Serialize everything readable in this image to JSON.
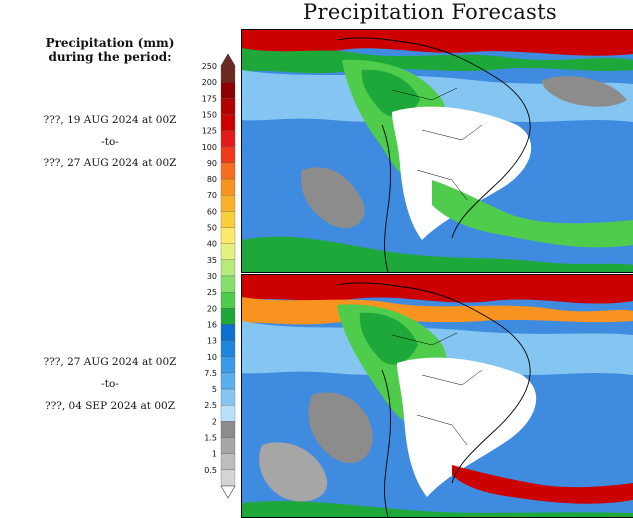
{
  "title": "Precipitation Forecasts",
  "legend": {
    "heading_line1": "Precipitation (mm)",
    "heading_line2": "during the period:",
    "levels": [
      {
        "label": "250",
        "color": "#6b2a1f"
      },
      {
        "label": "200",
        "color": "#8b0000"
      },
      {
        "label": "175",
        "color": "#b10000"
      },
      {
        "label": "150",
        "color": "#cc0000"
      },
      {
        "label": "125",
        "color": "#e31a1a"
      },
      {
        "label": "100",
        "color": "#f03a1a"
      },
      {
        "label": "90",
        "color": "#f56e1e"
      },
      {
        "label": "80",
        "color": "#f7931e"
      },
      {
        "label": "70",
        "color": "#f8b12a"
      },
      {
        "label": "60",
        "color": "#f9cf3c"
      },
      {
        "label": "50",
        "color": "#fae96a"
      },
      {
        "label": "40",
        "color": "#e3f27e"
      },
      {
        "label": "35",
        "color": "#b6ec7c"
      },
      {
        "label": "30",
        "color": "#84e06a"
      },
      {
        "label": "25",
        "color": "#4fcc4c"
      },
      {
        "label": "20",
        "color": "#1ea83a"
      },
      {
        "label": "16",
        "color": "#0e6fd1"
      },
      {
        "label": "13",
        "color": "#1f86e0"
      },
      {
        "label": "10",
        "color": "#3a9be8"
      },
      {
        "label": "7.5",
        "color": "#5aaeea"
      },
      {
        "label": "5",
        "color": "#84c6f1"
      },
      {
        "label": "2.5",
        "color": "#b8e0f6"
      },
      {
        "label": "2",
        "color": "#8c8c8c"
      },
      {
        "label": "1.5",
        "color": "#a6a6a6"
      },
      {
        "label": "1",
        "color": "#bdbdbd"
      },
      {
        "label": "0.5",
        "color": "#d4d4d4"
      }
    ]
  },
  "period1": {
    "start": "???, 19 AUG 2024 at 00Z",
    "sep": "-to-",
    "end": "???, 27 AUG 2024 at 00Z"
  },
  "period2": {
    "start": "???, 27 AUG 2024 at 00Z",
    "sep": "-to-",
    "end": "???, 04 SEP 2024 at 00Z"
  }
}
